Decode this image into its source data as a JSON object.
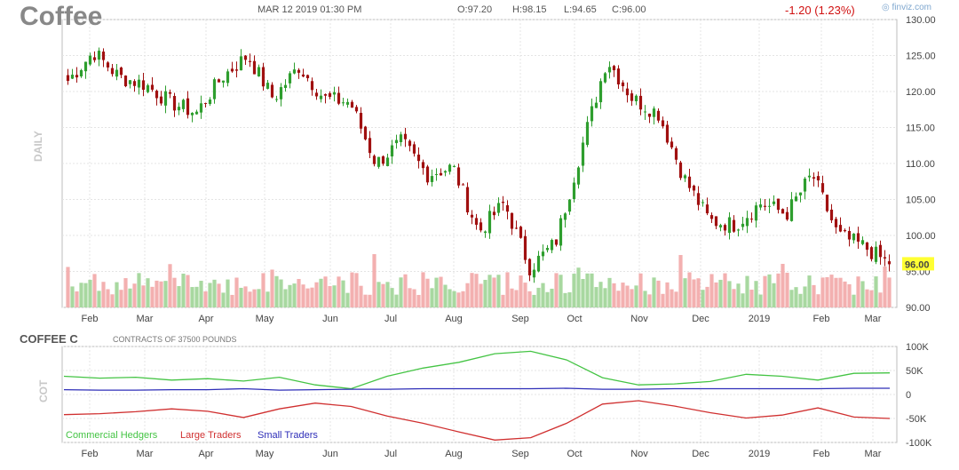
{
  "header": {
    "ticker": "Coffee",
    "date": "MAR 12 2019 01:30 PM",
    "open": "O:97.20",
    "high": "H:98.15",
    "low": "L:94.65",
    "close": "C:96.00",
    "change": "-1.20 (1.23%)",
    "brand": "finviz.com",
    "period_label": "DAILY"
  },
  "colors": {
    "up": "#2e9e2e",
    "down": "#a01010",
    "vol_up": "#a8d8a0",
    "vol_down": "#f3b0b0",
    "commercial": "#44c444",
    "large": "#d03030",
    "small": "#2e2eb8",
    "highlight": "#ffff33"
  },
  "chart_data": [
    {
      "type": "candlestick",
      "title": "Coffee",
      "ylabel": "DAILY",
      "ylim": [
        90,
        130
      ],
      "yticks": [
        "130.00",
        "125.00",
        "120.00",
        "115.00",
        "110.00",
        "105.00",
        "100.00",
        "95.00",
        "90.00"
      ],
      "xticks": [
        "Feb",
        "Mar",
        "Apr",
        "May",
        "Jun",
        "Jul",
        "Aug",
        "Sep",
        "Oct",
        "Nov",
        "Dec",
        "2019",
        "Feb",
        "Mar"
      ],
      "last_price_label": "96.00",
      "last": 96.0,
      "grid": true,
      "price_path": [
        [
          "Feb",
          121.5
        ],
        [
          "Feb",
          125.5
        ],
        [
          "Mar",
          122.0
        ],
        [
          "Mar",
          121.0
        ],
        [
          "Apr",
          118.5
        ],
        [
          "Apr",
          117.0
        ],
        [
          "May",
          122.0
        ],
        [
          "May",
          125.0
        ],
        [
          "May",
          119.0
        ],
        [
          "Jun",
          123.5
        ],
        [
          "Jun",
          119.0
        ],
        [
          "Jul",
          118.5
        ],
        [
          "Jul",
          110.0
        ],
        [
          "Jul",
          113.0
        ],
        [
          "Aug",
          108.5
        ],
        [
          "Aug",
          109.5
        ],
        [
          "Aug",
          100.5
        ],
        [
          "Sep",
          104.5
        ],
        [
          "Sep",
          95.5
        ],
        [
          "Oct",
          99.0
        ],
        [
          "Oct",
          112.0
        ],
        [
          "Oct",
          124.5
        ],
        [
          "Nov",
          119.0
        ],
        [
          "Nov",
          117.0
        ],
        [
          "Dec",
          108.0
        ],
        [
          "Dec",
          102.0
        ],
        [
          "2019",
          101.5
        ],
        [
          "2019",
          104.5
        ],
        [
          "Feb",
          103.0
        ],
        [
          "Feb",
          108.5
        ],
        [
          "Feb",
          100.0
        ],
        [
          "Mar",
          98.5
        ],
        [
          "Mar",
          96.0
        ]
      ]
    },
    {
      "type": "line",
      "title": "COFFEE C",
      "subtitle": "CONTRACTS OF 37500 POUNDS",
      "ylabel": "COT",
      "ylim": [
        -100000,
        100000
      ],
      "yticks": [
        "100K",
        "50K",
        "0",
        "-50K",
        "-100K"
      ],
      "xticks": [
        "Feb",
        "Mar",
        "Apr",
        "May",
        "Jun",
        "Jul",
        "Aug",
        "Sep",
        "Oct",
        "Nov",
        "Dec",
        "2019",
        "Feb",
        "Mar"
      ],
      "series": [
        {
          "name": "Commercial Hedgers",
          "values": [
            38000,
            34000,
            36000,
            30000,
            33000,
            28000,
            36000,
            20000,
            12000,
            38000,
            55000,
            67000,
            85000,
            90000,
            72000,
            35000,
            20000,
            22000,
            27000,
            42000,
            38000,
            30000,
            44000,
            45000
          ]
        },
        {
          "name": "Large Traders",
          "values": [
            -42000,
            -40000,
            -36000,
            -30000,
            -35000,
            -48000,
            -30000,
            -18000,
            -25000,
            -45000,
            -60000,
            -78000,
            -95000,
            -90000,
            -60000,
            -20000,
            -13000,
            -24000,
            -38000,
            -49000,
            -43000,
            -28000,
            -47000,
            -50000
          ]
        },
        {
          "name": "Small Traders",
          "values": [
            10000,
            9000,
            9000,
            10000,
            10000,
            12000,
            9000,
            10000,
            11000,
            11000,
            12000,
            12000,
            12000,
            12000,
            13000,
            11000,
            11000,
            12000,
            12000,
            12000,
            12000,
            12000,
            13000,
            13000
          ]
        }
      ]
    }
  ]
}
